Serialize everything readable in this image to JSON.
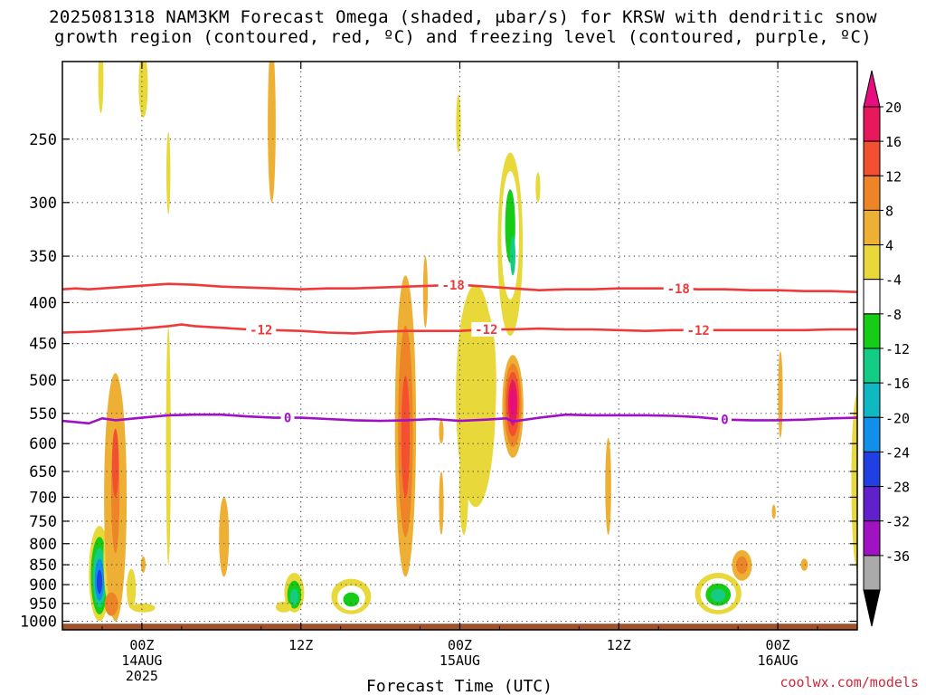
{
  "title_line1": "2025081318 NAM3KM Forecast Omega (shaded, μbar/s) for KRSW with dendritic snow",
  "title_line2": "growth region (contoured, red, ºC) and freezing level (contoured, purple, ºC)",
  "credit": "coolwx.com/models",
  "chart_data": {
    "type": "heatmap",
    "title": "2025081318 NAM3KM Forecast Omega (shaded, μbar/s) for KRSW with dendritic snow growth region (contoured, red, ºC) and freezing level (contoured, purple, ºC)",
    "xlabel": "Forecast Time (UTC)",
    "ylabel": "",
    "x_unit": "forecast hour from 2025-08-13 18Z",
    "xlim": [
      0,
      60
    ],
    "ylim": [
      1025,
      200
    ],
    "y_scale": "log",
    "y_ticks": [
      250,
      300,
      350,
      400,
      450,
      500,
      550,
      600,
      650,
      700,
      750,
      800,
      850,
      900,
      950,
      1000
    ],
    "x_ticks": [
      {
        "x": 6,
        "lines": [
          "00Z",
          "14AUG",
          "2025"
        ]
      },
      {
        "x": 18,
        "lines": [
          "12Z"
        ]
      },
      {
        "x": 30,
        "lines": [
          "00Z",
          "15AUG"
        ]
      },
      {
        "x": 42,
        "lines": [
          "12Z"
        ]
      },
      {
        "x": 54,
        "lines": [
          "00Z",
          "16AUG"
        ]
      }
    ],
    "grid": true,
    "ground": {
      "from_p": 1025,
      "to_p": 1007,
      "color": "#a0522d"
    },
    "colorbar": {
      "labels": [
        20,
        16,
        12,
        8,
        4,
        -4,
        -8,
        -12,
        -16,
        -20,
        -24,
        -28,
        -32,
        -36
      ],
      "bins": [
        {
          "color": "#e8185c"
        },
        {
          "color": "#f25030"
        },
        {
          "color": "#ee8428"
        },
        {
          "color": "#eeb034"
        },
        {
          "color": "#e8d83a"
        },
        {
          "color": "#ffffff"
        },
        {
          "color": "#16cc16"
        },
        {
          "color": "#14cc86"
        },
        {
          "color": "#10b8c4"
        },
        {
          "color": "#1090ea"
        },
        {
          "color": "#2040e4"
        },
        {
          "color": "#6020cc"
        },
        {
          "color": "#a012c2"
        },
        {
          "color": "#aaaaaa"
        }
      ],
      "top_color": "#e60e7f",
      "bottom_color": "#000000"
    },
    "contours": [
      {
        "name": "-18",
        "color": "#ee3a3a",
        "labels_at": [
          29.5,
          46.5
        ],
        "points": [
          [
            0,
            385
          ],
          [
            1,
            384
          ],
          [
            2,
            385
          ],
          [
            4,
            383
          ],
          [
            6,
            381
          ],
          [
            8,
            379
          ],
          [
            10,
            380
          ],
          [
            12,
            382
          ],
          [
            14,
            383
          ],
          [
            16,
            384
          ],
          [
            18,
            385
          ],
          [
            20,
            384
          ],
          [
            22,
            384
          ],
          [
            24,
            383
          ],
          [
            26,
            382
          ],
          [
            28,
            381
          ],
          [
            30,
            380
          ],
          [
            32,
            382
          ],
          [
            34,
            384
          ],
          [
            36,
            386
          ],
          [
            38,
            385
          ],
          [
            40,
            385
          ],
          [
            42,
            384
          ],
          [
            44,
            384
          ],
          [
            46,
            384
          ],
          [
            48,
            385
          ],
          [
            50,
            385
          ],
          [
            52,
            386
          ],
          [
            54,
            386
          ],
          [
            56,
            387
          ],
          [
            58,
            387
          ],
          [
            60,
            388
          ]
        ]
      },
      {
        "name": "-12",
        "color": "#ee3a3a",
        "labels_at": [
          15,
          32,
          48
        ],
        "points": [
          [
            0,
            436
          ],
          [
            2,
            435
          ],
          [
            4,
            433
          ],
          [
            6,
            431
          ],
          [
            8,
            428
          ],
          [
            9,
            426
          ],
          [
            10,
            428
          ],
          [
            12,
            430
          ],
          [
            14,
            432
          ],
          [
            16,
            433
          ],
          [
            18,
            434
          ],
          [
            20,
            436
          ],
          [
            22,
            437
          ],
          [
            24,
            435
          ],
          [
            26,
            434
          ],
          [
            28,
            434
          ],
          [
            30,
            434
          ],
          [
            32,
            432
          ],
          [
            34,
            432
          ],
          [
            36,
            431
          ],
          [
            38,
            432
          ],
          [
            40,
            432
          ],
          [
            42,
            433
          ],
          [
            44,
            434
          ],
          [
            46,
            433
          ],
          [
            48,
            433
          ],
          [
            50,
            433
          ],
          [
            52,
            433
          ],
          [
            54,
            433
          ],
          [
            56,
            433
          ],
          [
            58,
            432
          ],
          [
            60,
            432
          ]
        ]
      },
      {
        "name": "0",
        "color": "#a010c8",
        "labels_at": [
          17,
          50
        ],
        "points": [
          [
            0,
            562
          ],
          [
            2,
            566
          ],
          [
            3,
            558
          ],
          [
            4,
            561
          ],
          [
            6,
            557
          ],
          [
            8,
            553
          ],
          [
            10,
            552
          ],
          [
            12,
            552
          ],
          [
            14,
            555
          ],
          [
            16,
            557
          ],
          [
            18,
            557
          ],
          [
            20,
            559
          ],
          [
            22,
            561
          ],
          [
            24,
            562
          ],
          [
            26,
            561
          ],
          [
            28,
            559
          ],
          [
            30,
            562
          ],
          [
            32,
            560
          ],
          [
            33.5,
            558
          ],
          [
            34,
            563
          ],
          [
            36,
            557
          ],
          [
            38,
            552
          ],
          [
            40,
            553
          ],
          [
            42,
            553
          ],
          [
            44,
            553
          ],
          [
            46,
            554
          ],
          [
            48,
            556
          ],
          [
            50,
            560
          ],
          [
            52,
            561
          ],
          [
            54,
            561
          ],
          [
            56,
            560
          ],
          [
            58,
            558
          ],
          [
            60,
            557
          ]
        ]
      }
    ],
    "cells": [
      {
        "x": 2.8,
        "p": 900,
        "w": 1.6,
        "p_top": 760,
        "p_bot": 1000,
        "values": [
          -4,
          -12,
          -16,
          -24,
          -28
        ]
      },
      {
        "x": 3.6,
        "p": 800,
        "w": 1.0,
        "p_top": 720,
        "p_bot": 960,
        "values": [
          -4
        ]
      },
      {
        "x": 4.0,
        "p": 610,
        "w": 1.7,
        "p_top": 490,
        "p_bot": 1000,
        "values": [
          4
        ]
      },
      {
        "x": 4.0,
        "p": 640,
        "w": 1.1,
        "p_top": 540,
        "p_bot": 990,
        "values": [
          4,
          8
        ]
      },
      {
        "x": 4.0,
        "p": 660,
        "w": 0.5,
        "p_top": 575,
        "p_bot": 700,
        "values": [
          12
        ]
      },
      {
        "x": 3.7,
        "p": 948,
        "w": 1.0,
        "p_top": 920,
        "p_bot": 985,
        "values": [
          8
        ]
      },
      {
        "x": 5.2,
        "p": 910,
        "w": 0.7,
        "p_top": 860,
        "p_bot": 965,
        "values": [
          -4
        ]
      },
      {
        "x": 6.1,
        "p": 960,
        "w": 1.8,
        "p_top": 950,
        "p_bot": 975,
        "values": [
          -4
        ]
      },
      {
        "x": 6.1,
        "p": 850,
        "w": 0.35,
        "p_top": 830,
        "p_bot": 870,
        "values": [
          4
        ]
      },
      {
        "x": 2.9,
        "p": 205,
        "w": 0.4,
        "p_top": 190,
        "p_bot": 232,
        "values": [
          -4
        ]
      },
      {
        "x": 6.1,
        "p": 210,
        "w": 0.7,
        "p_top": 195,
        "p_bot": 235,
        "values": [
          -4
        ]
      },
      {
        "x": 8.0,
        "p": 280,
        "w": 0.3,
        "p_top": 245,
        "p_bot": 310,
        "values": [
          -4
        ]
      },
      {
        "x": 8.0,
        "p": 600,
        "w": 0.35,
        "p_top": 430,
        "p_bot": 850,
        "values": [
          -4
        ]
      },
      {
        "x": 12.2,
        "p": 800,
        "w": 0.75,
        "p_top": 700,
        "p_bot": 880,
        "values": [
          4
        ]
      },
      {
        "x": 15.8,
        "p": 240,
        "w": 0.6,
        "p_top": 190,
        "p_bot": 300,
        "values": [
          4
        ]
      },
      {
        "x": 17.5,
        "p": 940,
        "w": 1.5,
        "p_top": 870,
        "p_bot": 975,
        "values": [
          -4,
          -12,
          -16
        ]
      },
      {
        "x": 16.7,
        "p": 960,
        "w": 1.2,
        "p_top": 945,
        "p_bot": 975,
        "values": [
          -4
        ]
      },
      {
        "x": 21.8,
        "p": 945,
        "w": 3.0,
        "p_top": 885,
        "p_bot": 980,
        "values": [
          -4,
          -8,
          -12
        ]
      },
      {
        "x": 25.9,
        "p": 600,
        "w": 1.6,
        "p_top": 370,
        "p_bot": 880,
        "values": [
          4,
          8,
          12
        ]
      },
      {
        "x": 27.4,
        "p": 390,
        "w": 0.35,
        "p_top": 350,
        "p_bot": 430,
        "values": [
          4
        ]
      },
      {
        "x": 28.6,
        "p": 580,
        "w": 0.35,
        "p_top": 560,
        "p_bot": 600,
        "values": [
          4
        ]
      },
      {
        "x": 28.6,
        "p": 700,
        "w": 0.35,
        "p_top": 650,
        "p_bot": 780,
        "values": [
          4
        ]
      },
      {
        "x": 29.9,
        "p": 240,
        "w": 0.35,
        "p_top": 220,
        "p_bot": 260,
        "values": [
          -4
        ]
      },
      {
        "x": 30.3,
        "p": 680,
        "w": 0.7,
        "p_top": 590,
        "p_bot": 780,
        "values": [
          -4
        ]
      },
      {
        "x": 31.2,
        "p": 500,
        "w": 3.0,
        "p_top": 380,
        "p_bot": 720,
        "values": [
          -4
        ]
      },
      {
        "x": 32.0,
        "p": 500,
        "w": 1.5,
        "p_top": 410,
        "p_bot": 620,
        "values": [
          -4
        ]
      },
      {
        "x": 33.8,
        "p": 310,
        "w": 1.9,
        "p_top": 260,
        "p_bot": 440,
        "values": [
          -4,
          -8,
          -12
        ]
      },
      {
        "x": 34.0,
        "p": 350,
        "w": 0.4,
        "p_top": 330,
        "p_bot": 370,
        "values": [
          -16
        ]
      },
      {
        "x": 34.0,
        "p": 530,
        "w": 1.6,
        "p_top": 465,
        "p_bot": 625,
        "values": [
          4,
          8,
          12,
          16,
          20
        ]
      },
      {
        "x": 35.9,
        "p": 290,
        "w": 0.35,
        "p_top": 275,
        "p_bot": 300,
        "values": [
          -4
        ]
      },
      {
        "x": 41.2,
        "p": 680,
        "w": 0.45,
        "p_top": 590,
        "p_bot": 780,
        "values": [
          4
        ]
      },
      {
        "x": 49.5,
        "p": 930,
        "w": 3.5,
        "p_top": 870,
        "p_bot": 980,
        "values": [
          -4,
          -8,
          -12,
          -16
        ]
      },
      {
        "x": 51.3,
        "p": 850,
        "w": 1.5,
        "p_top": 815,
        "p_bot": 890,
        "values": [
          4,
          8
        ]
      },
      {
        "x": 54.2,
        "p": 520,
        "w": 0.35,
        "p_top": 460,
        "p_bot": 590,
        "values": [
          4
        ]
      },
      {
        "x": 53.7,
        "p": 730,
        "w": 0.3,
        "p_top": 715,
        "p_bot": 745,
        "values": [
          4
        ]
      },
      {
        "x": 56.0,
        "p": 850,
        "w": 0.55,
        "p_top": 835,
        "p_bot": 865,
        "values": [
          4
        ]
      },
      {
        "x": 60.0,
        "p": 700,
        "w": 0.9,
        "p_top": 520,
        "p_bot": 860,
        "values": [
          -4
        ]
      }
    ]
  }
}
